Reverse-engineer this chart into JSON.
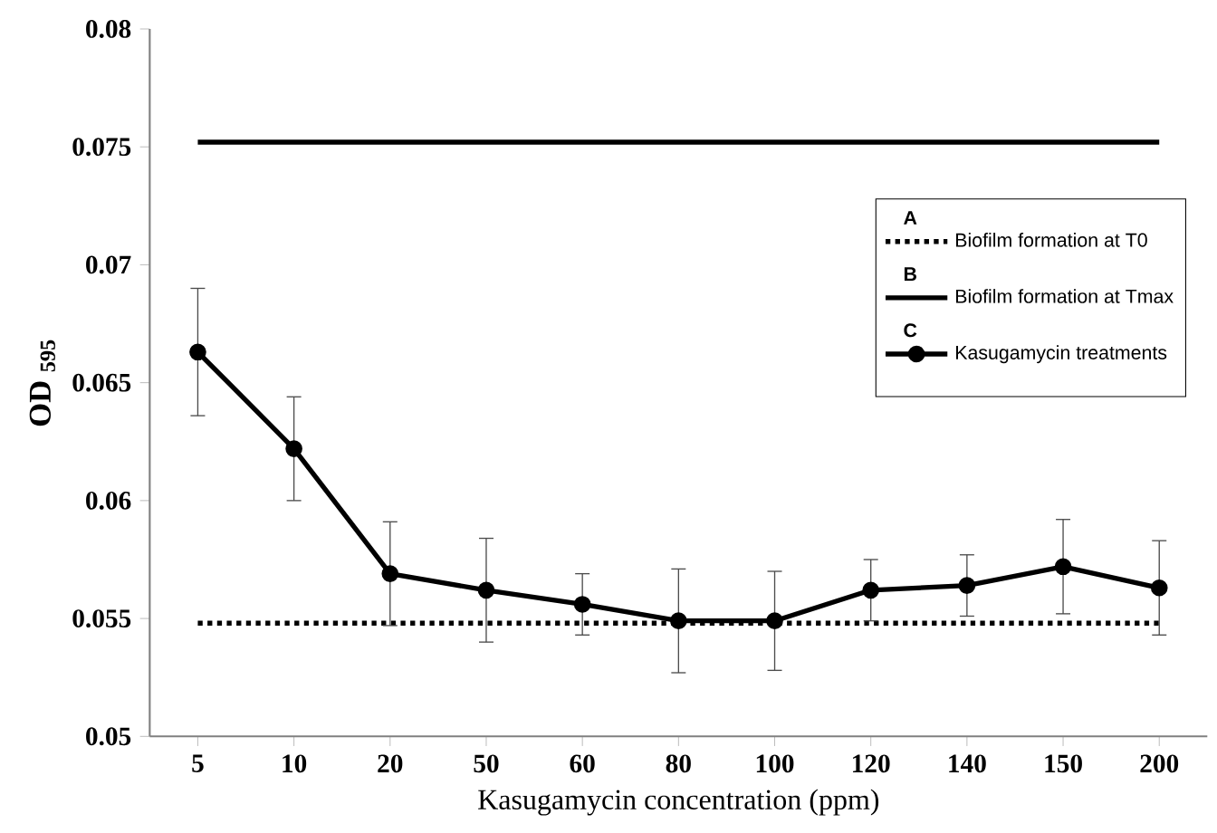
{
  "chart_data": {
    "type": "line",
    "xlabel": "Kasugamycin concentration (ppm)",
    "ylabel": "OD $_{595}$",
    "categories": [
      "5",
      "10",
      "20",
      "50",
      "60",
      "80",
      "100",
      "120",
      "140",
      "150",
      "200"
    ],
    "series": [
      {
        "name": "Biofilm formation at T0",
        "color": "#000000",
        "line_style": "dotted",
        "marker": "none",
        "values": [
          0.0548,
          0.0548,
          0.0548,
          0.0548,
          0.0548,
          0.0548,
          0.0548,
          0.0548,
          0.0548,
          0.0548,
          0.0548
        ]
      },
      {
        "name": "Biofilm formation at Tmax",
        "color": "#000000",
        "line_style": "solid",
        "marker": "none",
        "values": [
          0.0752,
          0.0752,
          0.0752,
          0.0752,
          0.0752,
          0.0752,
          0.0752,
          0.0752,
          0.0752,
          0.0752,
          0.0752
        ]
      },
      {
        "name": "Kasugamycin treatments",
        "color": "#000000",
        "line_style": "solid",
        "marker": "circle",
        "values": [
          0.0663,
          0.0622,
          0.0569,
          0.0562,
          0.0556,
          0.0549,
          0.0549,
          0.0562,
          0.0564,
          0.0572,
          0.0563
        ],
        "errors": [
          0.0027,
          0.0022,
          0.0022,
          0.0022,
          0.0013,
          0.0022,
          0.0021,
          0.0013,
          0.0013,
          0.002,
          0.002
        ]
      }
    ],
    "ylim": [
      0.05,
      0.08
    ],
    "yticks": [
      0.05,
      0.055,
      0.06,
      0.065,
      0.07,
      0.075,
      0.08
    ],
    "legend": "right",
    "grid": false,
    "annotations": [
      "A",
      "B",
      "C"
    ]
  }
}
